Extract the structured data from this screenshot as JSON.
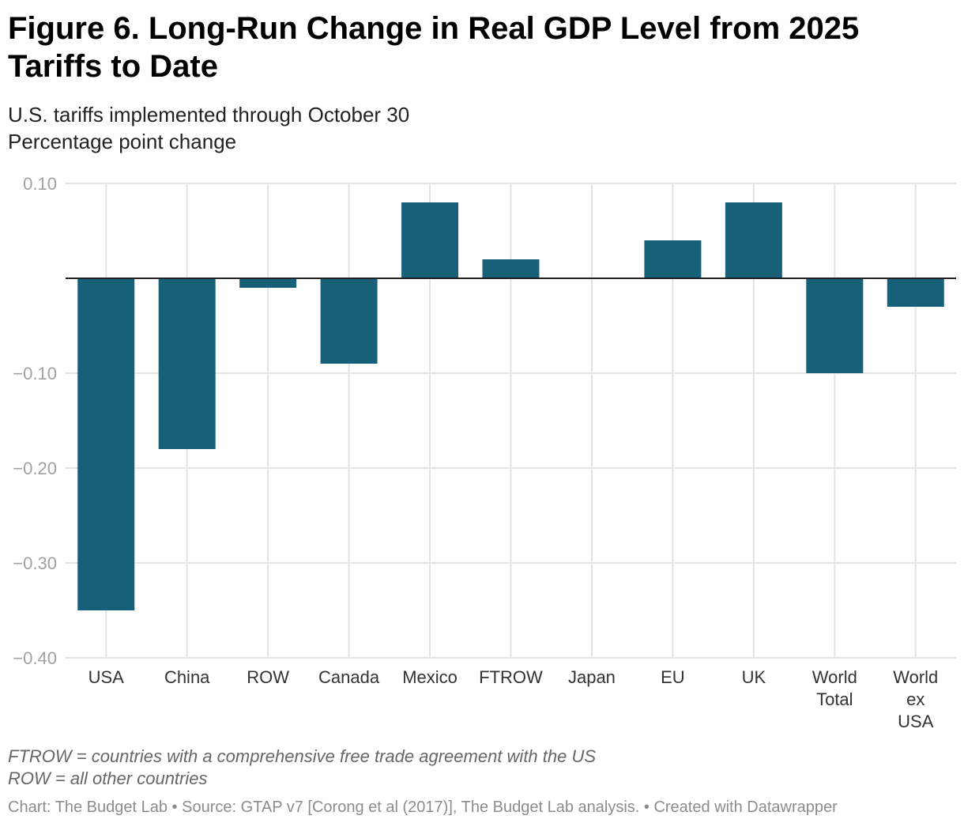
{
  "chart_data": {
    "type": "bar",
    "title": "Figure 6. Long-Run Change in Real GDP Level from 2025 Tariffs to Date",
    "subtitle": [
      "U.S. tariffs implemented through October 30",
      "Percentage point change"
    ],
    "categories": [
      "USA",
      "China",
      "ROW",
      "Canada",
      "Mexico",
      "FTROW",
      "Japan",
      "EU",
      "UK",
      "World Total",
      "World ex USA"
    ],
    "values": [
      -0.35,
      -0.18,
      -0.01,
      -0.09,
      0.08,
      0.02,
      0.0,
      0.04,
      0.08,
      -0.1,
      -0.03
    ],
    "ylim": [
      -0.4,
      0.1
    ],
    "yticks": [
      0.1,
      -0.1,
      -0.2,
      -0.3,
      -0.4
    ],
    "ytick_labels": [
      "0.10",
      "−0.10",
      "−0.20",
      "−0.30",
      "−0.40"
    ],
    "grid": true,
    "bar_color": "#17607a",
    "xlabel": "",
    "ylabel": ""
  },
  "notes": [
    "FTROW = countries with a comprehensive free trade agreement with the US",
    "ROW = all other countries"
  ],
  "source": "Chart: The Budget Lab • Source: GTAP v7 [Corong et al (2017)], The Budget Lab analysis. • Created with Datawrapper"
}
